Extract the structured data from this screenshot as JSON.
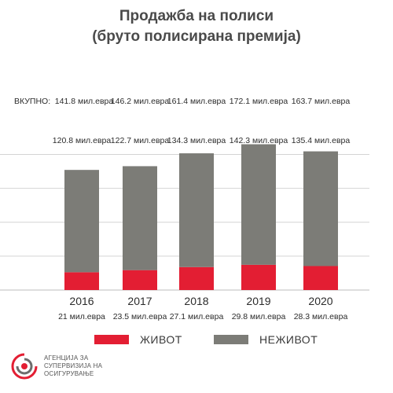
{
  "header": {
    "title_line1": "Продажба на полиси",
    "title_line2": "(бруто полисирана премија)"
  },
  "total_label": "ВКУПНО:",
  "colors": {
    "life": "#e31e33",
    "nonlife": "#7c7c77",
    "grid": "#d4d4d4",
    "text": "#2b2b2b"
  },
  "chart_data": {
    "type": "bar",
    "stacked": true,
    "categories": [
      "2016",
      "2017",
      "2018",
      "2019",
      "2020"
    ],
    "series": [
      {
        "name": "ЖИВОТ",
        "values": [
          21,
          23.5,
          27.1,
          29.8,
          28.3
        ],
        "labels": [
          "21 мил.евра",
          "23.5 мил.евра",
          "27.1 мил.евра",
          "29.8 мил.евра",
          "28.3 мил.евра"
        ]
      },
      {
        "name": "НЕЖИВОТ",
        "values": [
          120.8,
          122.7,
          134.3,
          142.3,
          135.4
        ],
        "labels": [
          "120.8 мил.евра",
          "122.7 мил.евра",
          "134.3 мил.евра",
          "142.3 мил.евра",
          "135.4 мил.евра"
        ]
      }
    ],
    "totals": [
      141.8,
      146.2,
      161.4,
      172.1,
      163.7
    ],
    "total_labels": [
      "141.8 мил.евра",
      "146.2 мил.евра",
      "161.4 мил.евра",
      "172.1 мил.евра",
      "163.7 мил.евра"
    ],
    "ylim": [
      0,
      180
    ],
    "grid": true,
    "legend_position": "bottom"
  },
  "legend": {
    "life_label": "ЖИВОТ",
    "nonlife_label": "НЕЖИВОТ"
  },
  "logo": {
    "line1": "АГЕНЦИЈА ЗА",
    "line2": "СУПЕРВИЗИЈА НА",
    "line3": "ОСИГУРУВАЊЕ"
  }
}
